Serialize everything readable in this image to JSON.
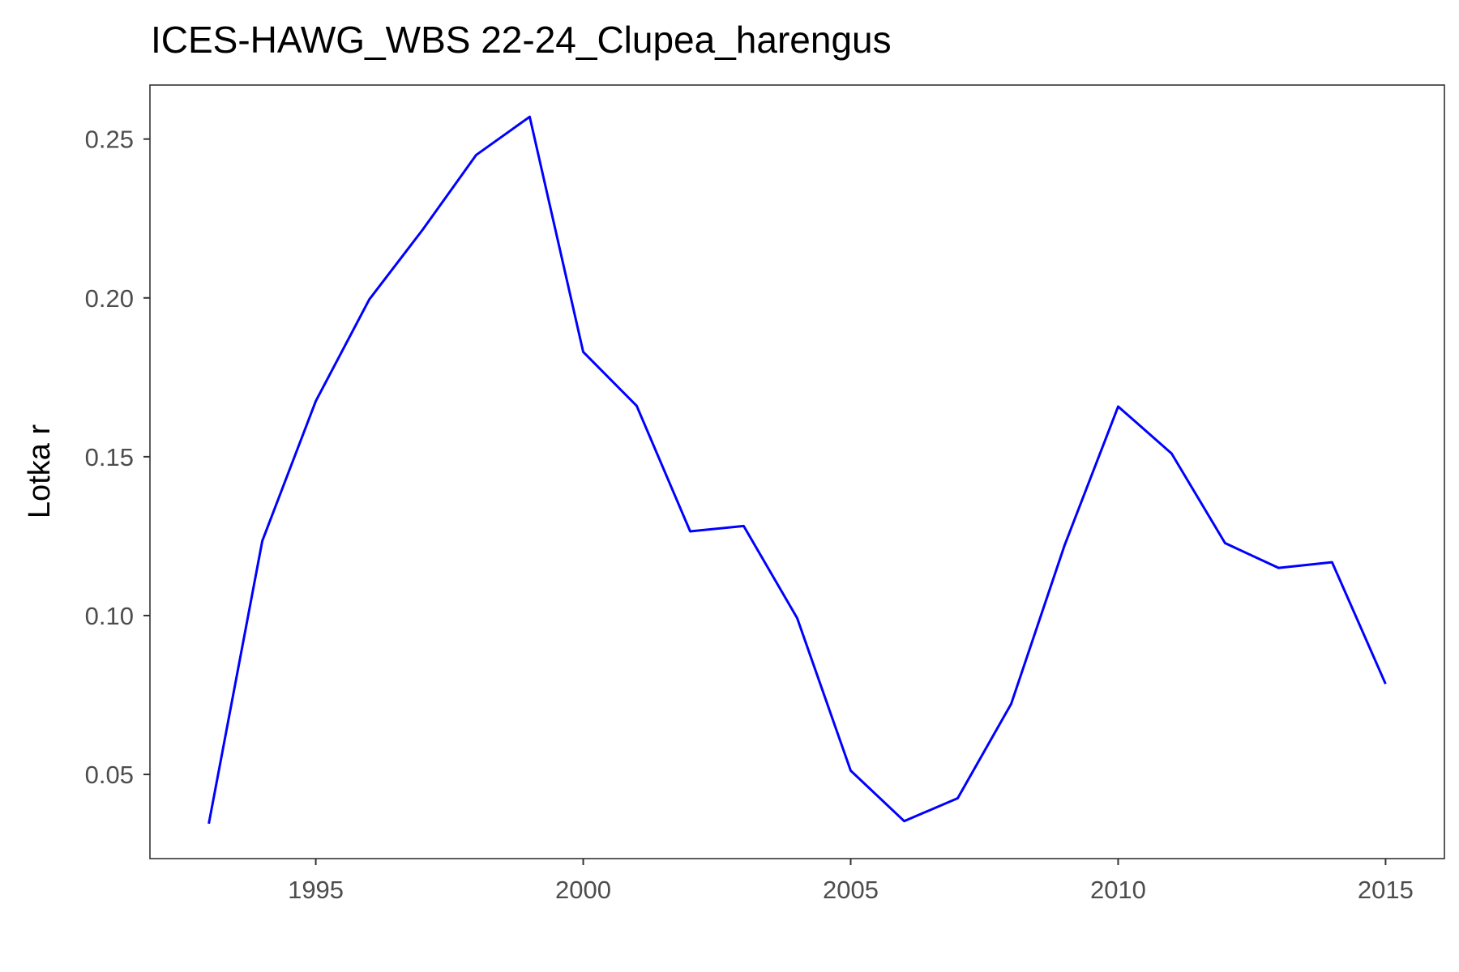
{
  "chart_data": {
    "type": "line",
    "title": "ICES-HAWG_WBS 22-24_Clupea_harengus",
    "xlabel": "",
    "ylabel": "Lotka r",
    "xlim": [
      1991.9,
      2016.1
    ],
    "ylim": [
      0.0235,
      0.267
    ],
    "x_ticks": [
      1995,
      2000,
      2005,
      2010,
      2015
    ],
    "x_tick_labels": [
      "1995",
      "2000",
      "2005",
      "2010",
      "2015"
    ],
    "y_ticks": [
      0.05,
      0.1,
      0.15,
      0.2,
      0.25
    ],
    "y_tick_labels": [
      "0.05",
      "0.10",
      "0.15",
      "0.20",
      "0.25"
    ],
    "grid": false,
    "legend": "none",
    "series": [
      {
        "color": "#0000ff",
        "x": [
          1993,
          1994,
          1995,
          1996,
          1997,
          1998,
          1999,
          2000,
          2001,
          2002,
          2003,
          2004,
          2005,
          2006,
          2007,
          2008,
          2009,
          2010,
          2011,
          2012,
          2013,
          2014,
          2015
        ],
        "y": [
          0.0345,
          0.1235,
          0.1675,
          0.1995,
          0.2215,
          0.245,
          0.257,
          0.183,
          0.166,
          0.1265,
          0.1282,
          0.0992,
          0.0512,
          0.0353,
          0.0425,
          0.0722,
          0.1222,
          0.1658,
          0.151,
          0.1228,
          0.115,
          0.1168,
          0.0785
        ]
      }
    ]
  }
}
